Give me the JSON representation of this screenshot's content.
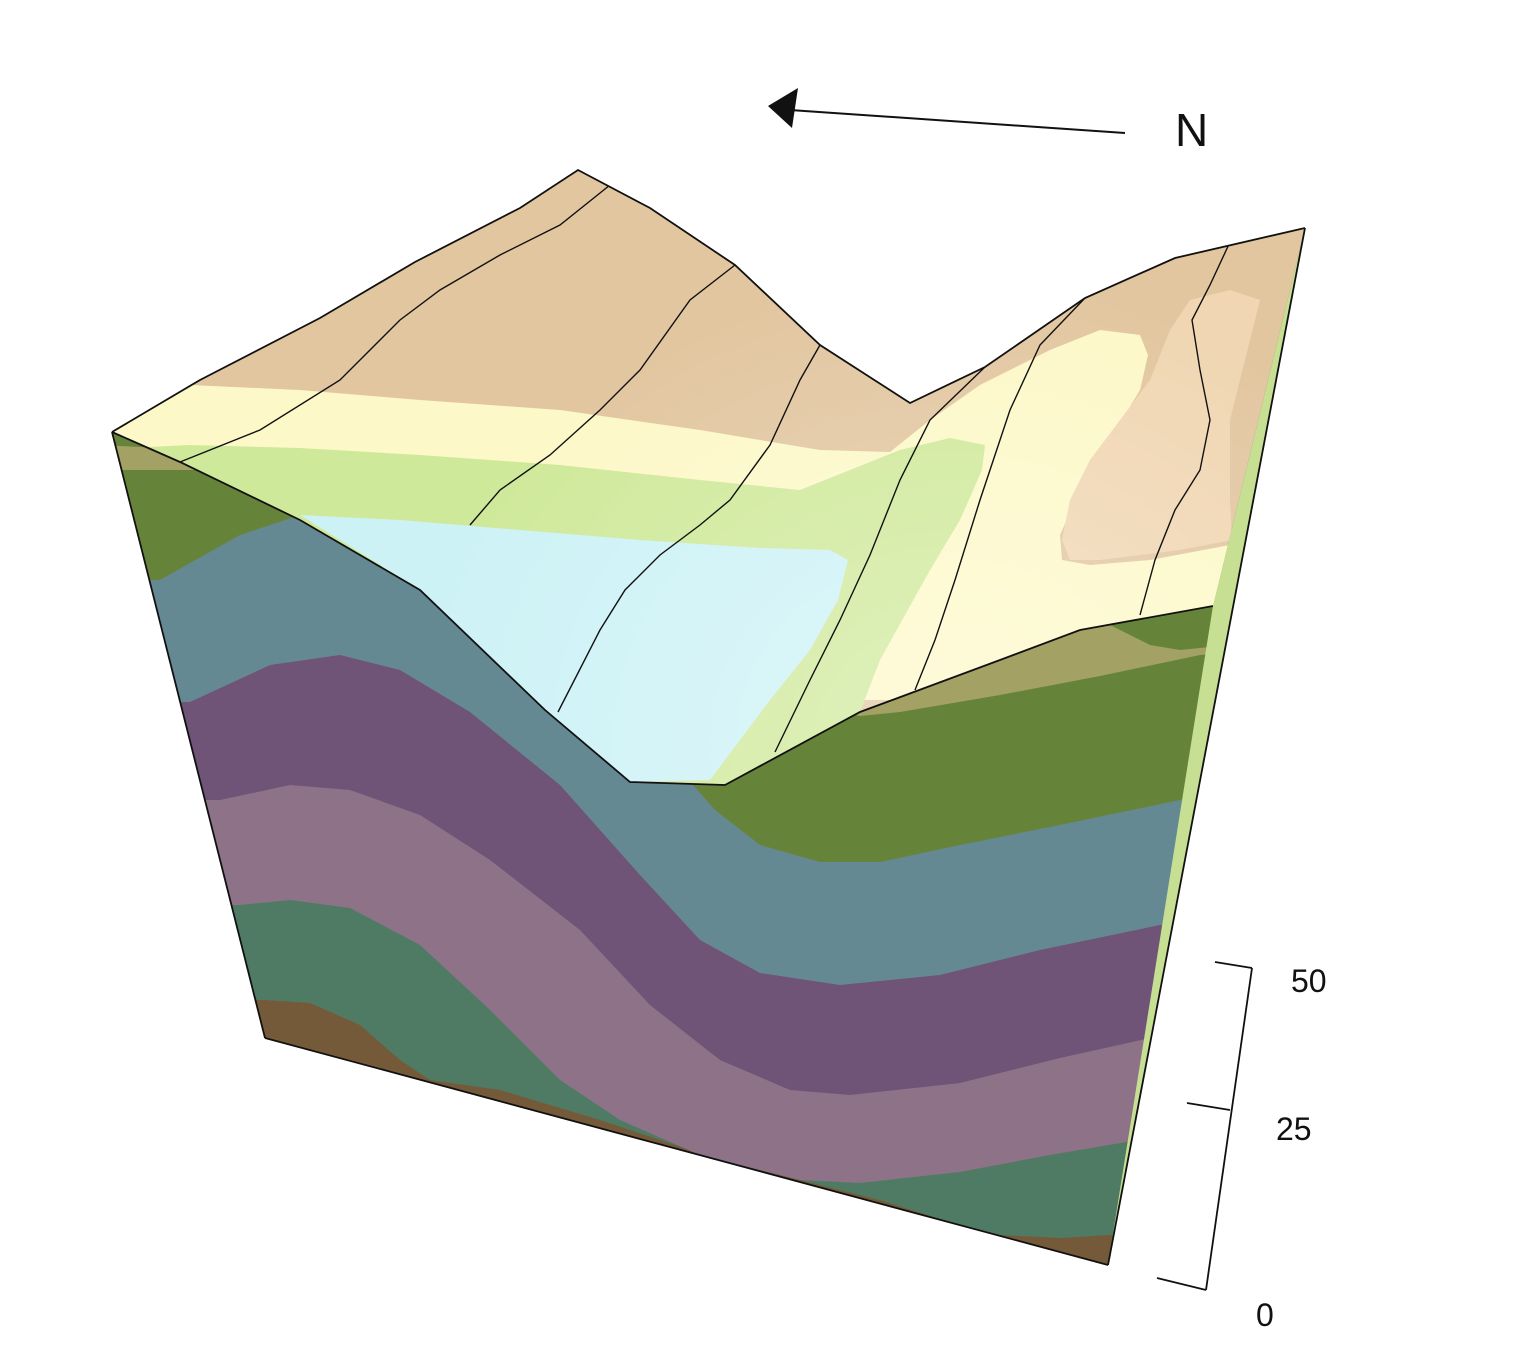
{
  "north_arrow": {
    "label": "N",
    "icon": "north-arrow-icon"
  },
  "vertical_scale": {
    "ticks": [
      "50",
      "25",
      "0"
    ]
  },
  "colors": {
    "top_tan": "#e2c6a0",
    "top_light_tan": "#f0d6b2",
    "top_cream": "#fdf8c8",
    "top_light_green": "#cfe99a",
    "top_bright_green": "#d7f6a0",
    "top_pale_cyan": "#cdf2f6",
    "layer_olive": "#6b8a3c",
    "layer_khaki": "#aba86a",
    "layer_teal": "#6a8f98",
    "layer_purple": "#74587c",
    "layer_mauve": "#93778e",
    "layer_green": "#538069",
    "layer_brown": "#7a5e3c",
    "outline": "#111111"
  }
}
